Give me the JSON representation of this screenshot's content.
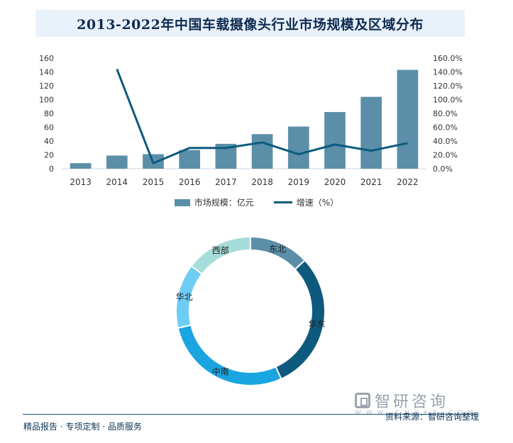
{
  "title": "2013-2022年中国车载摄像头行业市场规模及区域分布",
  "chart_data": [
    {
      "type": "bar",
      "categories": [
        "2013",
        "2014",
        "2015",
        "2016",
        "2017",
        "2018",
        "2019",
        "2020",
        "2021",
        "2022"
      ],
      "series": [
        {
          "name": "市场规模：亿元",
          "type": "bar",
          "axis": "left",
          "color": "#5b8fa8",
          "values": [
            8,
            19,
            21,
            27,
            36,
            50,
            61,
            82,
            104,
            143
          ]
        },
        {
          "name": "增速（%）",
          "type": "line",
          "axis": "right",
          "color": "#0e5a7e",
          "values": [
            null,
            144,
            8,
            30,
            30,
            38,
            21,
            35,
            26,
            37
          ]
        }
      ],
      "left_axis": {
        "ylim": [
          0,
          160
        ],
        "ticks": [
          "0",
          "20",
          "40",
          "60",
          "80",
          "100",
          "120",
          "140",
          "160"
        ]
      },
      "right_axis": {
        "ylim": [
          0,
          160
        ],
        "ticks": [
          "0.0%",
          "20.0%",
          "40.0%",
          "60.0%",
          "80.0%",
          "100.0%",
          "120.0%",
          "140.0%",
          "160.0%"
        ]
      },
      "legend": [
        "市场规模：亿元",
        "增速（%）"
      ]
    },
    {
      "type": "pie",
      "subtype": "donut",
      "labels": [
        "东北",
        "华东",
        "中南",
        "华北",
        "西部"
      ],
      "values": [
        12.5,
        29,
        27,
        13.5,
        14
      ],
      "colors": [
        "#5b8fa8",
        "#0e5a7e",
        "#1aa5e0",
        "#6dcdf5",
        "#a6dcd9"
      ]
    }
  ],
  "footer": {
    "left": "精品报告 · 专项定制 · 品质服务",
    "source": "资料来源：智研咨询整理",
    "brand": "智研咨询",
    "brand_sub": "W W W . C H Y X X . C O M"
  }
}
